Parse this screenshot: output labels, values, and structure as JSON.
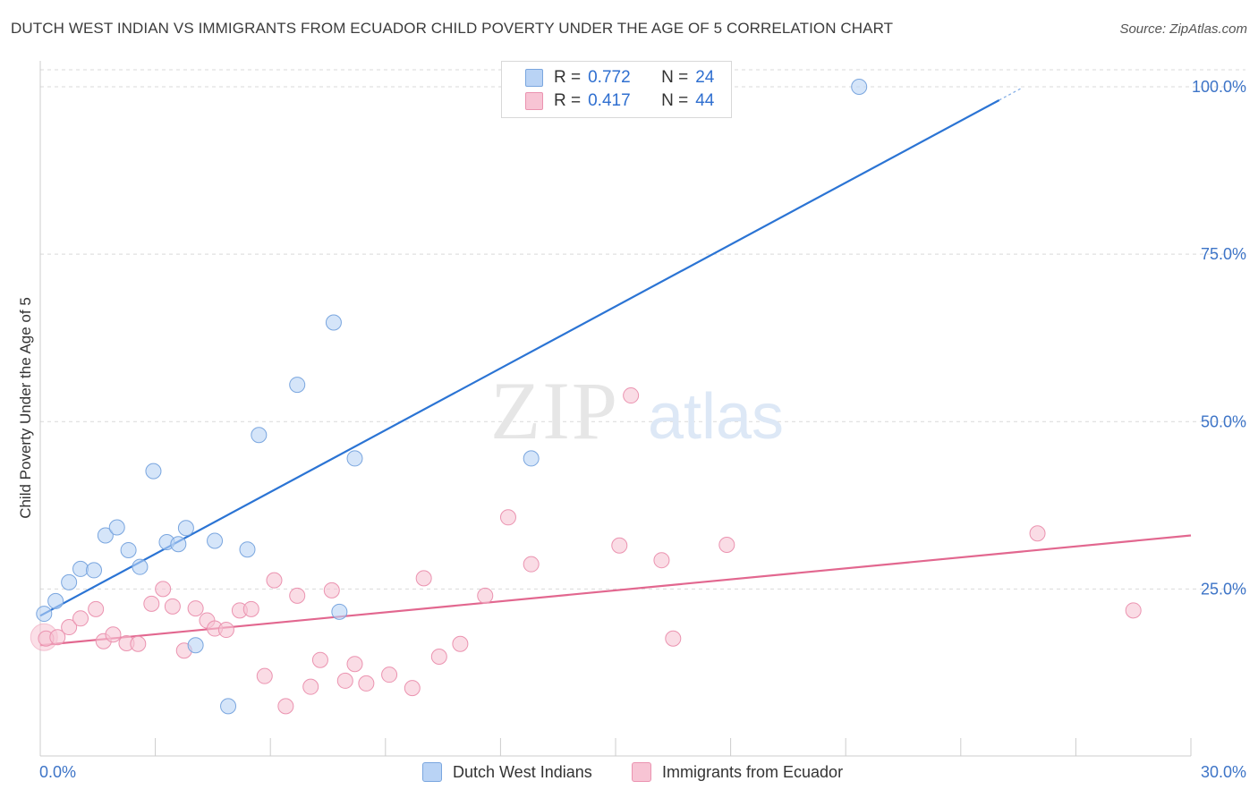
{
  "title": "DUTCH WEST INDIAN VS IMMIGRANTS FROM ECUADOR CHILD POVERTY UNDER THE AGE OF 5 CORRELATION CHART",
  "source": "Source: ZipAtlas.com",
  "watermark": {
    "zip": "ZIP",
    "atlas": "atlas"
  },
  "legend": {
    "rows": [
      {
        "r_label": "R =",
        "r_value": "0.772",
        "n_label": "N =",
        "n_value": "24"
      },
      {
        "r_label": "R =",
        "r_value": "0.417",
        "n_label": "N =",
        "n_value": "44"
      }
    ]
  },
  "bottom_legend": [
    "Dutch West Indians",
    "Immigrants from Ecuador"
  ],
  "colors": {
    "blue_fill": "#b9d3f5",
    "blue_stroke": "#7aa6df",
    "blue_line": "#2b74d4",
    "pink_fill": "#f7c4d4",
    "pink_stroke": "#eb93b0",
    "pink_line": "#e2678f",
    "tick_text": "#3d74c7",
    "grid": "#d9d9d9"
  },
  "chart_data": {
    "type": "scatter",
    "title": "DUTCH WEST INDIAN VS IMMIGRANTS FROM ECUADOR CHILD POVERTY UNDER THE AGE OF 5 CORRELATION CHART",
    "xlabel": "",
    "ylabel": "Child Poverty Under the Age of 5",
    "xlim": [
      0,
      30
    ],
    "ylim": [
      0,
      105
    ],
    "x_tick_labels": [
      "0.0%",
      "30.0%"
    ],
    "y_ticks": [
      25,
      50,
      75,
      100
    ],
    "y_tick_labels": [
      "25.0%",
      "50.0%",
      "75.0%",
      "100.0%"
    ],
    "grid": true,
    "legend_position": "top-center",
    "series": [
      {
        "name": "Dutch West Indians",
        "color": "#b9d3f5",
        "R": 0.772,
        "N": 24,
        "trend": {
          "x": [
            0,
            25.0
          ],
          "y": [
            21.0,
            98.0
          ]
        },
        "points": [
          [
            0.1,
            21.3
          ],
          [
            0.4,
            23.2
          ],
          [
            0.75,
            26.0
          ],
          [
            1.05,
            28.0
          ],
          [
            1.4,
            27.8
          ],
          [
            1.7,
            33.0
          ],
          [
            2.0,
            34.2
          ],
          [
            2.3,
            30.8
          ],
          [
            2.6,
            28.3
          ],
          [
            2.95,
            42.6
          ],
          [
            3.3,
            32.0
          ],
          [
            3.6,
            31.7
          ],
          [
            3.8,
            34.1
          ],
          [
            4.05,
            16.6
          ],
          [
            4.55,
            32.2
          ],
          [
            4.9,
            7.5
          ],
          [
            5.4,
            30.9
          ],
          [
            5.7,
            48.0
          ],
          [
            6.7,
            55.5
          ],
          [
            7.65,
            64.8
          ],
          [
            7.8,
            21.6
          ],
          [
            8.2,
            44.5
          ],
          [
            12.8,
            44.5
          ],
          [
            21.35,
            100.0
          ]
        ]
      },
      {
        "name": "Immigrants from Ecuador",
        "color": "#f7c4d4",
        "R": 0.417,
        "N": 44,
        "trend": {
          "x": [
            0,
            30
          ],
          "y": [
            16.6,
            33.0
          ]
        },
        "points": [
          [
            0.15,
            17.6
          ],
          [
            0.45,
            17.8
          ],
          [
            0.75,
            19.3
          ],
          [
            1.05,
            20.6
          ],
          [
            1.45,
            22.0
          ],
          [
            1.65,
            17.2
          ],
          [
            1.9,
            18.2
          ],
          [
            2.25,
            16.9
          ],
          [
            2.55,
            16.8
          ],
          [
            2.9,
            22.8
          ],
          [
            3.2,
            25.0
          ],
          [
            3.45,
            22.4
          ],
          [
            3.75,
            15.8
          ],
          [
            4.05,
            22.1
          ],
          [
            4.35,
            20.3
          ],
          [
            4.55,
            19.1
          ],
          [
            4.85,
            18.9
          ],
          [
            5.2,
            21.8
          ],
          [
            5.5,
            22.0
          ],
          [
            5.85,
            12.0
          ],
          [
            6.1,
            26.3
          ],
          [
            6.4,
            7.5
          ],
          [
            6.7,
            24.0
          ],
          [
            7.05,
            10.4
          ],
          [
            7.3,
            14.4
          ],
          [
            7.6,
            24.8
          ],
          [
            7.95,
            11.3
          ],
          [
            8.2,
            13.8
          ],
          [
            8.5,
            10.9
          ],
          [
            9.1,
            12.2
          ],
          [
            9.7,
            10.2
          ],
          [
            10.0,
            26.6
          ],
          [
            10.4,
            14.9
          ],
          [
            10.95,
            16.8
          ],
          [
            11.6,
            24.0
          ],
          [
            12.2,
            35.7
          ],
          [
            12.8,
            28.7
          ],
          [
            15.1,
            31.5
          ],
          [
            15.4,
            53.9
          ],
          [
            16.2,
            29.3
          ],
          [
            16.5,
            17.6
          ],
          [
            17.9,
            31.6
          ],
          [
            26.0,
            33.3
          ],
          [
            28.5,
            21.8
          ]
        ]
      }
    ]
  }
}
